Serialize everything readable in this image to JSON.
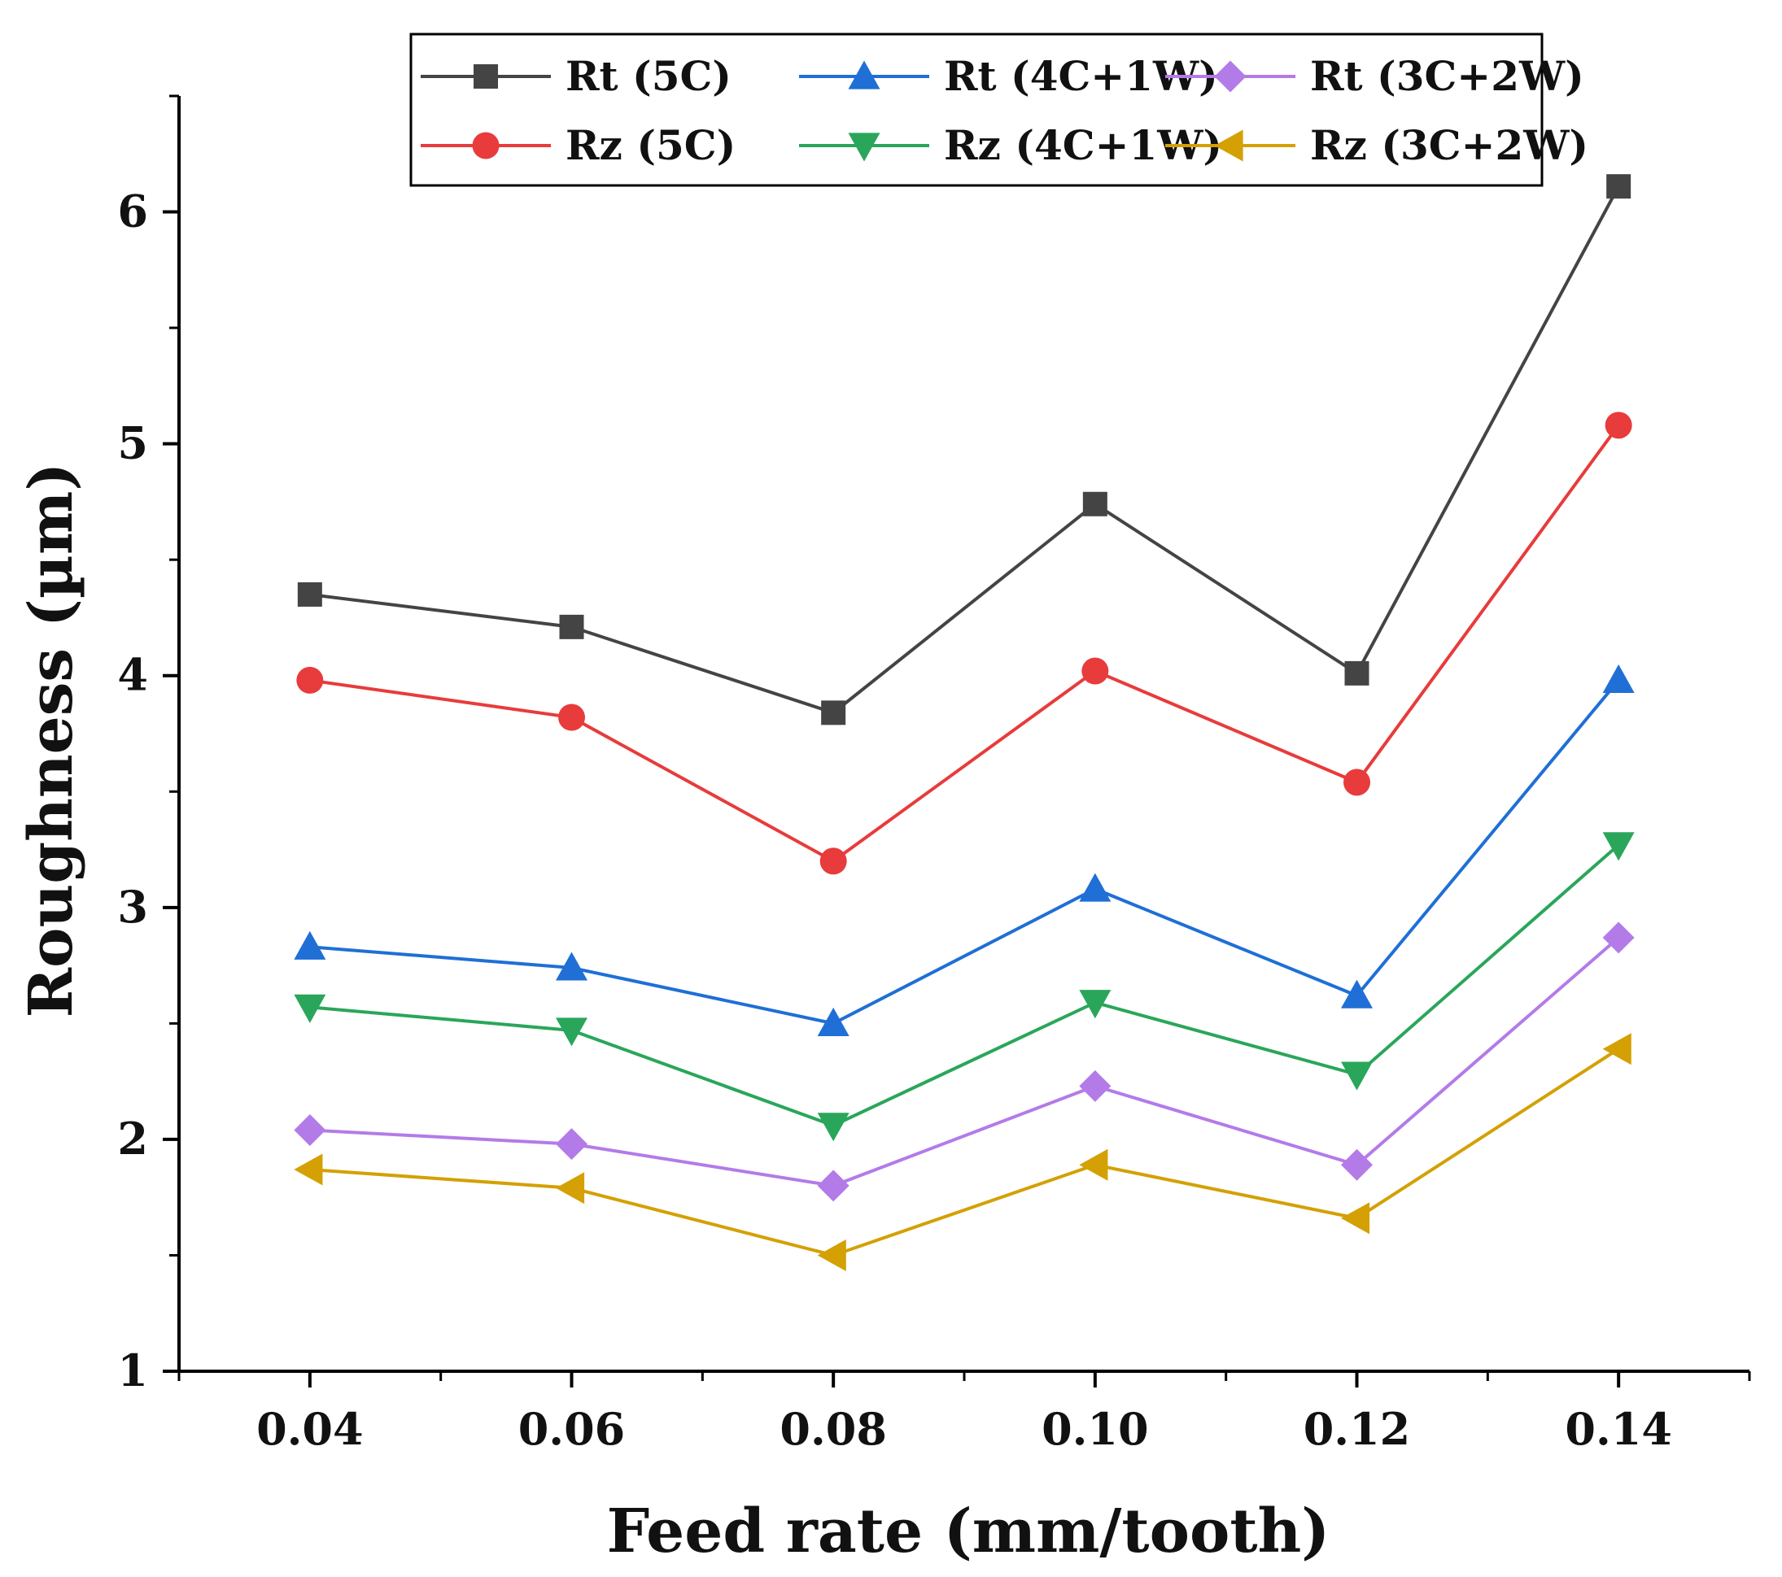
{
  "chart_data": {
    "type": "line",
    "title": "",
    "xlabel": "Feed rate (mm/tooth)",
    "ylabel": "Roughness (µm)",
    "xlim": [
      0.03,
      0.15
    ],
    "ylim": [
      1,
      6.5
    ],
    "x": [
      0.04,
      0.06,
      0.08,
      0.1,
      0.12,
      0.14
    ],
    "x_tick_labels": [
      "0.04",
      "0.06",
      "0.08",
      "0.10",
      "0.12",
      "0.14"
    ],
    "y_ticks": [
      1,
      2,
      3,
      4,
      5,
      6
    ],
    "y_tick_labels": [
      "1",
      "2",
      "3",
      "4",
      "5",
      "6"
    ],
    "grid": false,
    "legend_position": "top-right",
    "series": [
      {
        "name": "Rt (5C)",
        "color": "#444444",
        "marker": "square",
        "values": [
          4.35,
          4.21,
          3.84,
          4.74,
          4.01,
          6.11
        ]
      },
      {
        "name": "Rt (4C+1W)",
        "color": "#1f6fd6",
        "marker": "triangle-up",
        "values": [
          2.83,
          2.74,
          2.5,
          3.08,
          2.62,
          3.98
        ]
      },
      {
        "name": "Rt (3C+2W)",
        "color": "#b37be8",
        "marker": "diamond",
        "values": [
          2.04,
          1.98,
          1.8,
          2.23,
          1.89,
          2.87
        ]
      },
      {
        "name": "Rz (5C)",
        "color": "#e83b3b",
        "marker": "circle",
        "values": [
          3.98,
          3.82,
          3.2,
          4.02,
          3.54,
          5.08
        ]
      },
      {
        "name": "Rz (4C+1W)",
        "color": "#2aa65a",
        "marker": "triangle-down",
        "values": [
          2.57,
          2.47,
          2.06,
          2.59,
          2.28,
          3.27
        ]
      },
      {
        "name": "Rz (3C+2W)",
        "color": "#d4a004",
        "marker": "triangle-left",
        "values": [
          1.87,
          1.79,
          1.5,
          1.89,
          1.66,
          2.39
        ]
      }
    ]
  }
}
